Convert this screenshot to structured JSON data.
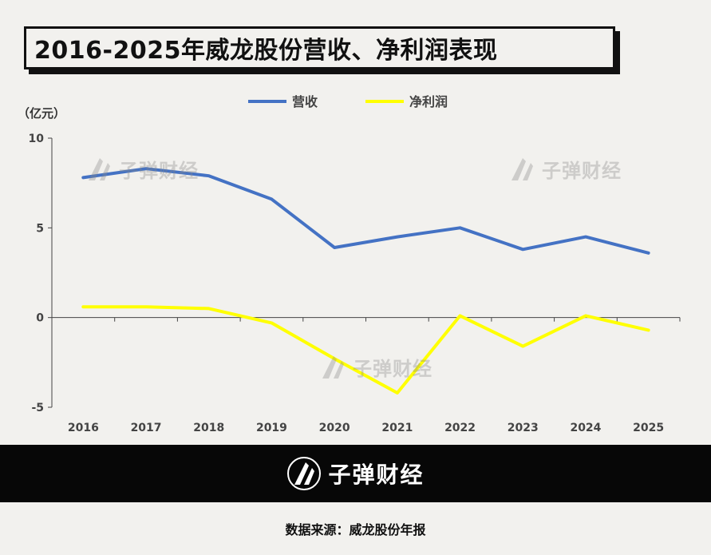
{
  "title": "2016-2025年威龙股份营收、净利润表现",
  "unit_label": "（亿元）",
  "source_label": "数据来源：威龙股份年报",
  "brand": {
    "name": "子弹财经",
    "icon": "bullet-logo-icon"
  },
  "colors": {
    "revenue": "#4472c4",
    "net_profit": "#ffff00",
    "background": "#f2f1ee",
    "footer": "#070707"
  },
  "chart_data": {
    "type": "line",
    "title": "2016-2025年威龙股份营收、净利润表现",
    "x": [
      "2016",
      "2017",
      "2018",
      "2019",
      "2020",
      "2021",
      "2022",
      "2023",
      "2024",
      "2025"
    ],
    "series": [
      {
        "name": "营收",
        "values": [
          7.8,
          8.3,
          7.9,
          6.6,
          3.9,
          4.5,
          5.0,
          3.8,
          4.5,
          3.6
        ]
      },
      {
        "name": "净利润",
        "values": [
          0.6,
          0.6,
          0.5,
          -0.3,
          -2.3,
          -4.2,
          0.1,
          -1.6,
          0.1,
          -0.7
        ]
      }
    ],
    "ylim": [
      -5,
      10
    ],
    "yticks": [
      "-5",
      "0",
      "5",
      "10"
    ],
    "ylabel": "（亿元）",
    "legend_position": "top-center",
    "grid": false
  }
}
